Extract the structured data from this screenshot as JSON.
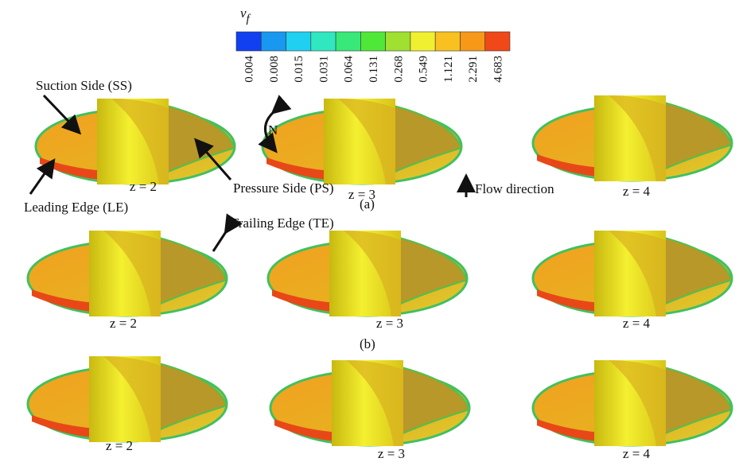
{
  "colorbar": {
    "title": "v",
    "subscript": "f",
    "labels": [
      "0.004",
      "0.008",
      "0.015",
      "0.031",
      "0.064",
      "0.131",
      "0.268",
      "0.549",
      "1.121",
      "2.291",
      "4.683"
    ]
  },
  "annotations": {
    "suction_side": "Suction Side (SS)",
    "leading_edge": "Leading Edge (LE)",
    "pressure_side": "Pressure Side (PS)",
    "trailing_edge": "Trailing Edge (TE)",
    "flow_direction": "Flow direction",
    "rotation": "N"
  },
  "panels": [
    {
      "label": "(a)",
      "impellers": [
        "z = 2",
        "z = 3",
        "z = 4"
      ]
    },
    {
      "label": "(b)",
      "impellers": [
        "z = 2",
        "z = 3",
        "z = 4"
      ]
    },
    {
      "impellers": [
        "z = 2",
        "z = 3",
        "z = 4"
      ]
    }
  ]
}
